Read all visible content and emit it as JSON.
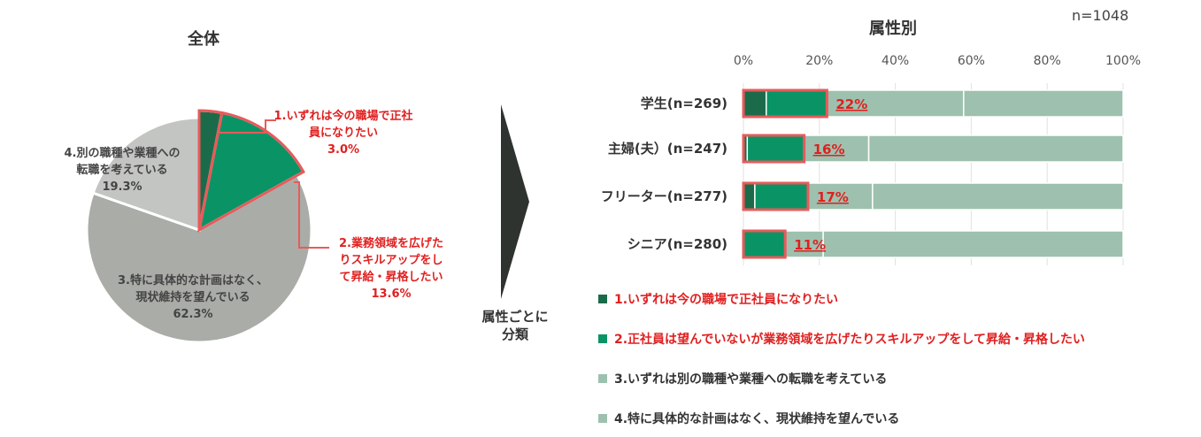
{
  "chart_data": [
    {
      "type": "pie",
      "title": "全体",
      "slices": [
        {
          "label": "1.いずれは今の職場で正社員になりたい",
          "value": 3.0,
          "display_lines": [
            "1.いずれは今の職場で正社",
            "員になりたい",
            "3.0%"
          ],
          "color": "#1b6b4b"
        },
        {
          "label": "2.業務領域を広げたりスキルアップをして昇給・昇格したい",
          "value": 13.6,
          "display_lines": [
            "2.業務領域を広げた",
            "りスキルアップをし",
            "て昇給・昇格したい",
            "13.6%"
          ],
          "color": "#0a9466"
        },
        {
          "label": "3.特に具体的な計画はなく、現状維持を望んでいる",
          "value": 62.3,
          "display_lines": [
            "3.特に具体的な計画はなく、",
            "現状維持を望んでいる",
            "62.3%"
          ],
          "color": "#a9aca7"
        },
        {
          "label": "4.別の職種や業種への転職を考えている",
          "value": 19.3,
          "display_lines": [
            "4.別の職種や業種への",
            "転職を考えている",
            "19.3%"
          ],
          "color": "#c3c5c2"
        }
      ]
    },
    {
      "type": "bar",
      "orientation": "horizontal",
      "stacked": true,
      "title": "属性別",
      "sample_size": "n=1048",
      "xlim": [
        0,
        100
      ],
      "x_ticks": [
        "0%",
        "20%",
        "40%",
        "60%",
        "80%",
        "100%"
      ],
      "categories": [
        "学生(n=269)",
        "主婦(夫）(n=247)",
        "フリーター(n=277)",
        "シニア(n=280)"
      ],
      "highlight_labels": [
        "22%",
        "16%",
        "17%",
        "11%"
      ],
      "series": [
        {
          "name": "1.いずれは今の職場で正社員になりたい",
          "values": [
            6,
            1,
            3,
            0
          ],
          "color": "#1b6b4b"
        },
        {
          "name": "2.正社員は望んでいないが業務領域を広げたりスキルアップをして昇給・昇格したい",
          "values": [
            16,
            15,
            14,
            11
          ],
          "color": "#0a9466"
        },
        {
          "name": "3.いずれは別の職種や業種への転職を考えている",
          "values": [
            36,
            17,
            17,
            10
          ],
          "color": "#9dc1ae"
        },
        {
          "name": "4.特に具体的な計画はなく、現状維持を望んでいる",
          "values": [
            42,
            67,
            66,
            79
          ],
          "color": "#9dc1ae"
        }
      ],
      "legend_colors": [
        "#1b6b4b",
        "#0a9466",
        "#9dc1ae",
        "#9dc1ae"
      ],
      "legend_text_colors": [
        "#e02020",
        "#e02020",
        "#333333",
        "#333333"
      ]
    }
  ],
  "middle_label": [
    "属性ごとに",
    "分類"
  ],
  "highlight_color": "#e85a5a"
}
